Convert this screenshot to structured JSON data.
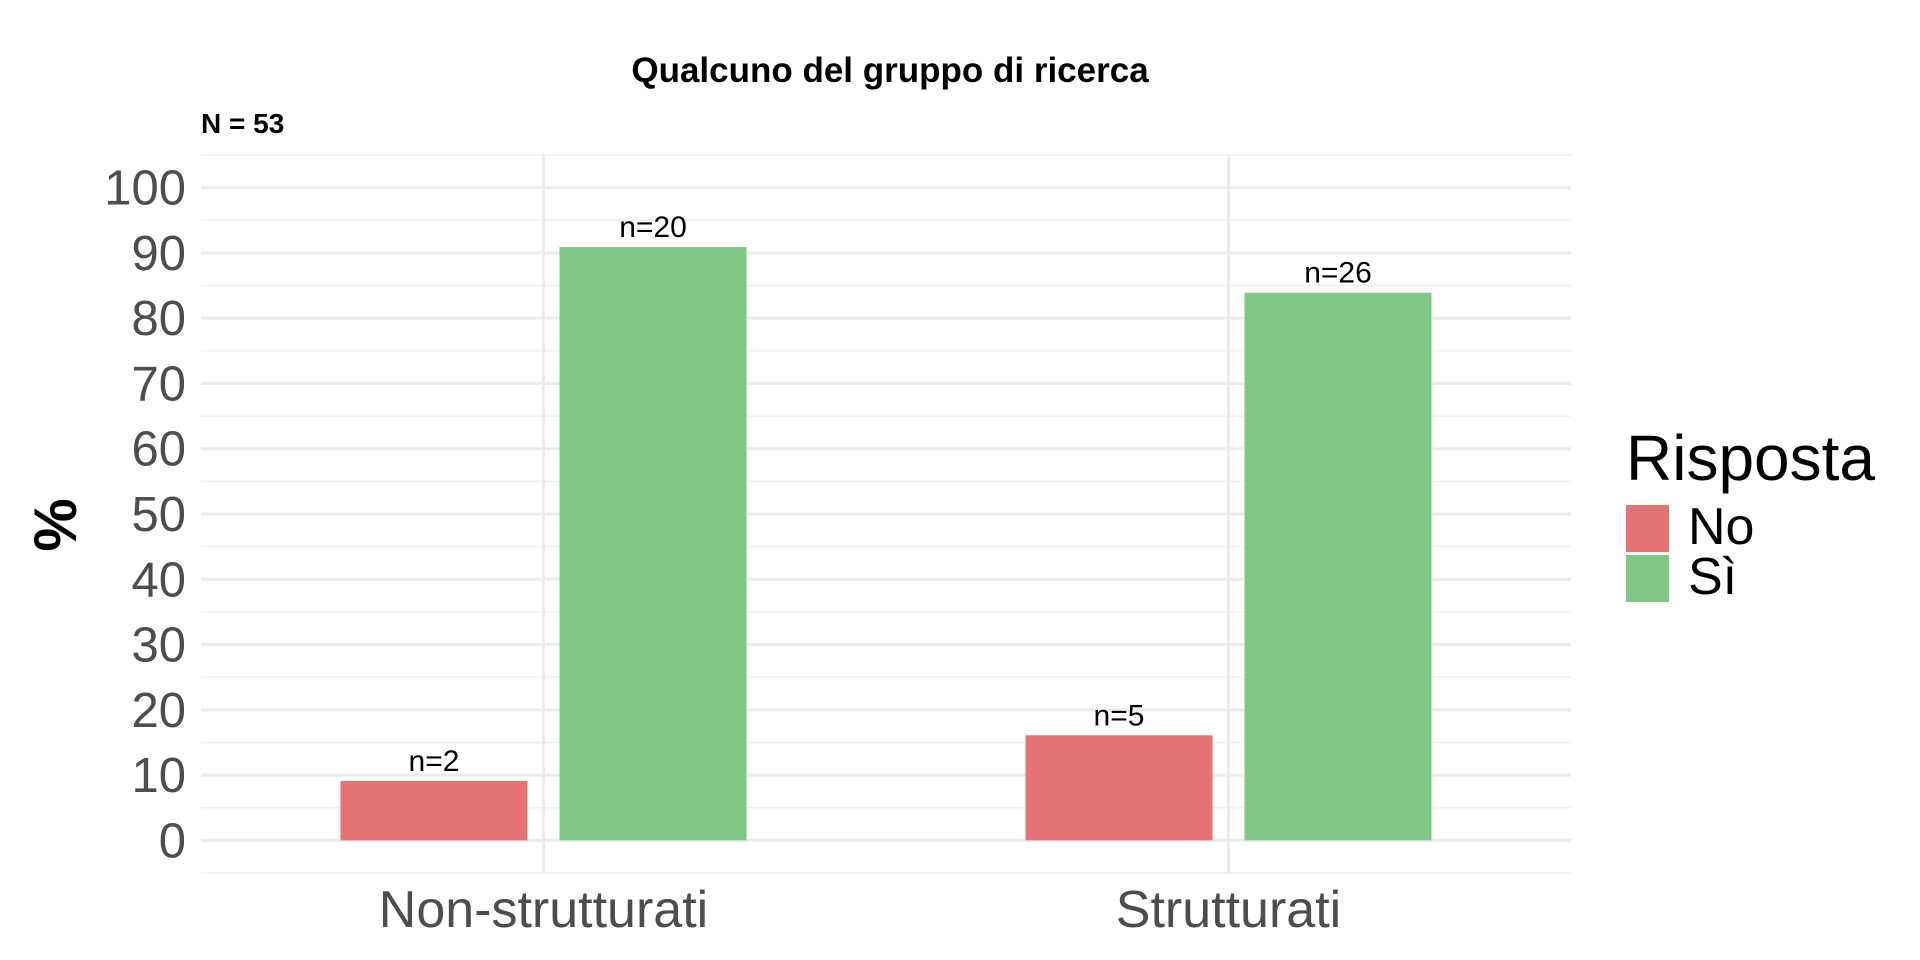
{
  "chart_data": {
    "type": "bar",
    "title": "Qualcuno del gruppo di ricerca",
    "subtitle": "N = 53",
    "ylabel": "%",
    "xlabel": "",
    "ylim": [
      -5,
      105
    ],
    "yticks": [
      0,
      10,
      20,
      30,
      40,
      50,
      60,
      70,
      80,
      90,
      100
    ],
    "categories": [
      "Non-strutturati",
      "Strutturati"
    ],
    "series": [
      {
        "name": "No",
        "color": "#E57373",
        "values": [
          9.1,
          16.1
        ],
        "labels": [
          "n=2",
          "n=5"
        ]
      },
      {
        "name": "Sì",
        "color": "#81C784",
        "values": [
          90.9,
          83.9
        ],
        "labels": [
          "n=20",
          "n=26"
        ]
      }
    ],
    "legend": {
      "title": "Risposta",
      "position": "right"
    },
    "grid": true
  }
}
